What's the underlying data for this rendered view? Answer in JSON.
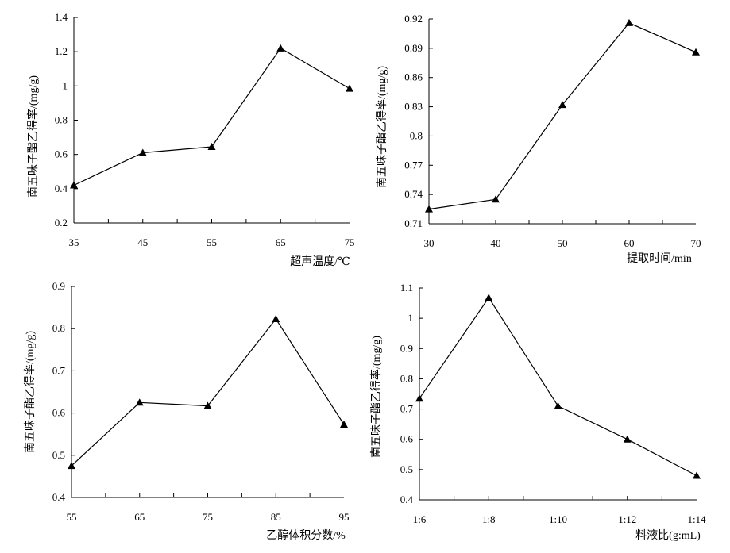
{
  "chart_data": [
    {
      "type": "line",
      "xlabel": "超声温度/℃",
      "ylabel": "南五味子酯乙得率/(mg/g)",
      "categories": [
        "35",
        "45",
        "55",
        "65",
        "75"
      ],
      "yticks": [
        "0.2",
        "0.4",
        "0.6",
        "0.8",
        "1",
        "1.2",
        "1.4"
      ],
      "ylim": [
        0.2,
        1.4
      ],
      "series": [
        {
          "values": [
            0.42,
            0.61,
            0.645,
            1.22,
            0.985
          ]
        }
      ],
      "marker": "triangle",
      "grid": false
    },
    {
      "type": "line",
      "xlabel": "提取时间/min",
      "ylabel": "南五味子酯乙得率/(mg/g)",
      "categories": [
        "30",
        "40",
        "50",
        "60",
        "70"
      ],
      "yticks": [
        "0.71",
        "0.74",
        "0.77",
        "0.8",
        "0.83",
        "0.86",
        "0.89",
        "0.92"
      ],
      "ylim": [
        0.71,
        0.92
      ],
      "series": [
        {
          "values": [
            0.725,
            0.735,
            0.832,
            0.916,
            0.886
          ]
        }
      ],
      "marker": "triangle",
      "grid": false
    },
    {
      "type": "line",
      "xlabel": "乙醇体积分数/%",
      "ylabel": "南五味子酯乙得率/(mg/g)",
      "categories": [
        "55",
        "65",
        "75",
        "85",
        "95"
      ],
      "yticks": [
        "0.4",
        "0.5",
        "0.6",
        "0.7",
        "0.8",
        "0.9"
      ],
      "ylim": [
        0.4,
        0.9
      ],
      "series": [
        {
          "values": [
            0.475,
            0.625,
            0.617,
            0.823,
            0.573
          ]
        }
      ],
      "marker": "triangle",
      "grid": false
    },
    {
      "type": "line",
      "xlabel": "料液比(g:mL)",
      "ylabel": "南五味子酯乙得率/(mg/g)",
      "categories": [
        "1:6",
        "1:8",
        "1:10",
        "1:12",
        "1:14"
      ],
      "yticks": [
        "0.4",
        "0.5",
        "0.6",
        "0.7",
        "0.8",
        "0.9",
        "1",
        "1.1"
      ],
      "ylim": [
        0.4,
        1.1
      ],
      "series": [
        {
          "values": [
            0.735,
            1.068,
            0.71,
            0.6,
            0.48
          ]
        }
      ],
      "marker": "triangle",
      "grid": false
    }
  ]
}
